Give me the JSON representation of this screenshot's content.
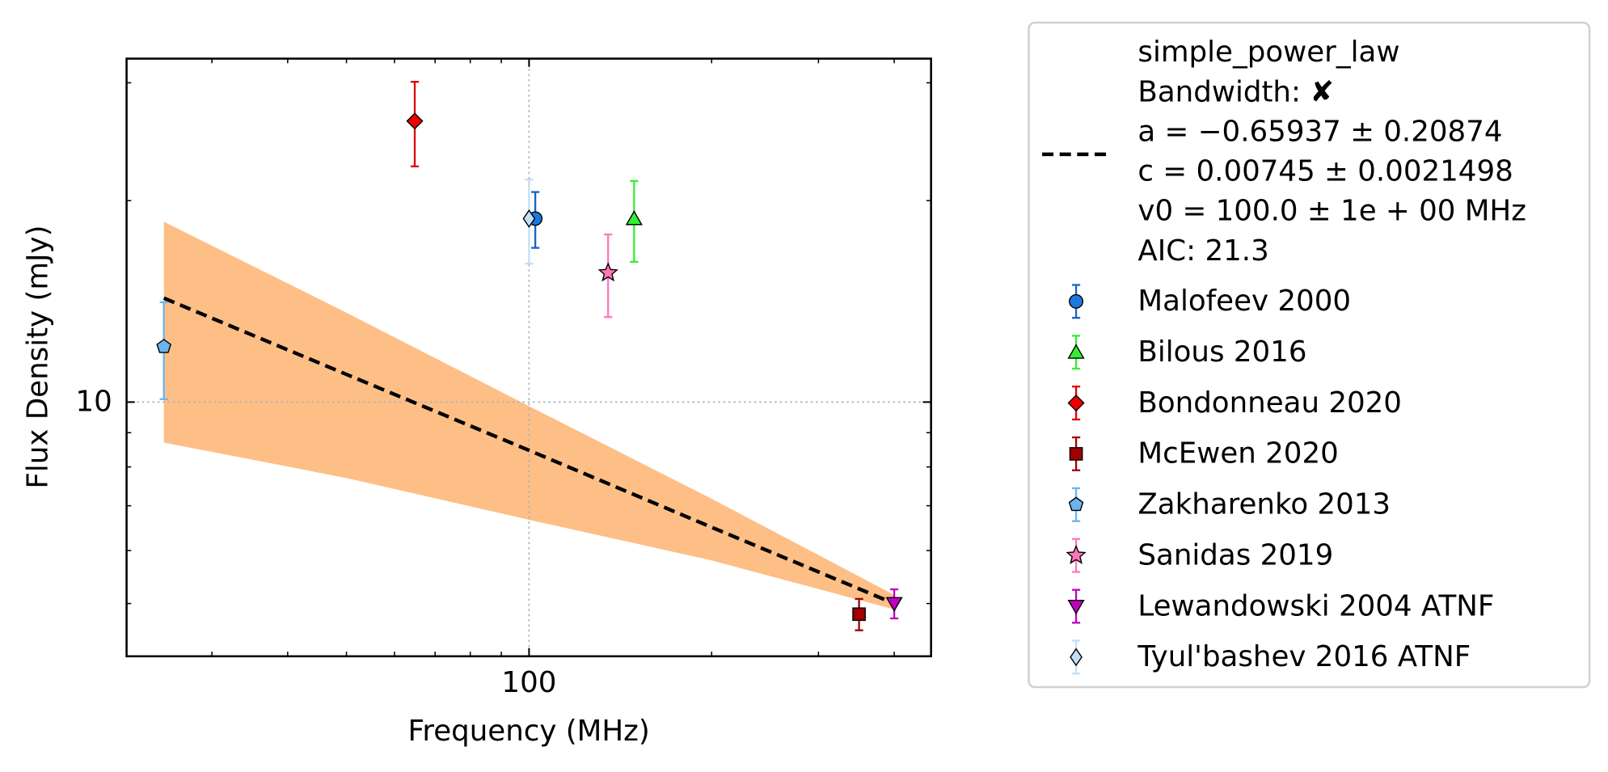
{
  "chart_data": {
    "type": "scatter",
    "xlabel": "Frequency (MHz)",
    "ylabel": "Flux Density (mJy)",
    "log_x": true,
    "log_y": true,
    "grid": true,
    "xlim": [
      21.7,
      460
    ],
    "ylim": [
      4.17,
      32.6
    ],
    "xticks": [
      100
    ],
    "yticks": [
      10
    ],
    "xminorticks": [
      30,
      40,
      50,
      60,
      70,
      80,
      90,
      200,
      300,
      400
    ],
    "yminorticks": [
      5,
      6,
      7,
      8,
      9,
      20,
      30
    ],
    "legend_position": "outside right",
    "fit": {
      "color": "#000000",
      "band_color": "#fdbf86",
      "x": [
        25,
        50,
        100,
        200,
        400
      ],
      "y": [
        14.3,
        11.0,
        8.47,
        6.5,
        5.0
      ],
      "upper": [
        18.6,
        13.6,
        9.86,
        7.17,
        5.15
      ],
      "lower": [
        8.7,
        7.7,
        6.67,
        5.8,
        4.9
      ],
      "legend_lines": [
        "simple_power_law",
        "Bandwidth: ✘",
        "a = −0.65937 ± 0.20874",
        "c = 0.00745 ± 0.0021498",
        "v0 = 100.0 ± 1e + 00 MHz",
        "AIC: 21.3"
      ]
    },
    "series": [
      {
        "name": "Malofeev 2000",
        "color": "#1565c0",
        "fill": "#1f77e0",
        "marker": "circle",
        "x": [
          102.4
        ],
        "values": [
          18.8
        ],
        "errors": [
          1.8
        ]
      },
      {
        "name": "Bilous 2016",
        "color": "#33ee33",
        "fill": "#33ee33",
        "marker": "triangle",
        "x": [
          149
        ],
        "values": [
          18.8
        ],
        "errors": [
          2.6
        ]
      },
      {
        "name": "Bondonneau 2020",
        "color": "#e00000",
        "fill": "#ee0000",
        "marker": "diamond",
        "x": [
          64.8
        ],
        "values": [
          26.3
        ],
        "errors": [
          3.8
        ]
      },
      {
        "name": "McEwen 2020",
        "color": "#a00000",
        "fill": "#a00000",
        "marker": "square",
        "x": [
          350
        ],
        "values": [
          4.82
        ],
        "errors": [
          0.26
        ]
      },
      {
        "name": "Zakharenko 2013",
        "color": "#6cb4ee",
        "fill": "#6cb4ee",
        "marker": "pentagon",
        "x": [
          25
        ],
        "values": [
          12.1
        ],
        "errors": [
          2.0
        ]
      },
      {
        "name": "Sanidas 2019",
        "color": "#ff77bb",
        "fill": "#ff77bb",
        "marker": "star",
        "x": [
          135
        ],
        "values": [
          15.6
        ],
        "errors": [
          2.2
        ]
      },
      {
        "name": "Lewandowski 2004 ATNF",
        "color": "#c000c0",
        "fill": "#c000c0",
        "marker": "triangle_down",
        "x": [
          400
        ],
        "values": [
          5.0
        ],
        "errors": [
          0.25
        ]
      },
      {
        "name": "Tyul'bashev 2016 ATNF",
        "color": "#c4def5",
        "fill": "#c4def5",
        "marker": "thin_diamond",
        "x": [
          100
        ],
        "values": [
          18.8
        ],
        "errors": [
          2.7
        ]
      }
    ]
  }
}
